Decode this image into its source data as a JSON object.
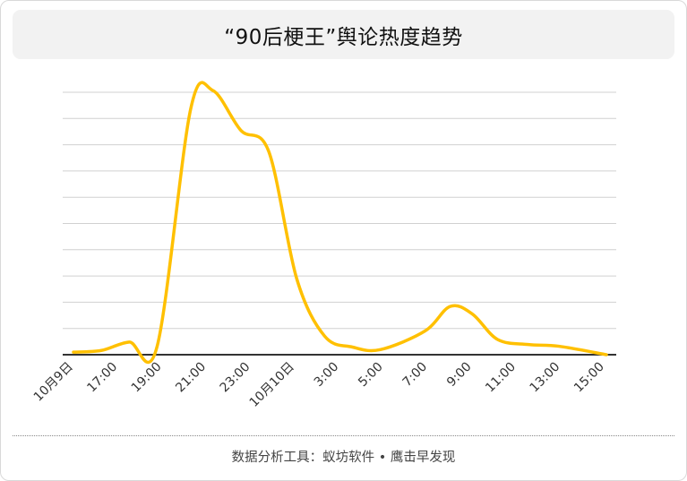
{
  "chart_data": {
    "type": "line",
    "title": "“90后梗王”舆论热度趋势",
    "xlabel": "",
    "ylabel": "",
    "x_tick_labels": [
      "10月9日",
      "17:00",
      "19:00",
      "21:00",
      "23:00",
      "10月10日",
      "3:00",
      "5:00",
      "7:00",
      "9:00",
      "11:00",
      "13:00",
      "15:00"
    ],
    "series": [
      {
        "color": "#FFC000",
        "values": [
          0.3,
          0.5,
          1.5,
          1.0,
          29.0,
          31.2,
          26.5,
          24.0,
          9.0,
          2.2,
          0.9,
          0.6,
          2.8,
          5.7,
          4.8,
          1.8,
          1.2,
          1.0,
          0.0
        ]
      }
    ],
    "x_positions": [
      0,
      1,
      2,
      3,
      4.2,
      5,
      6,
      7,
      8,
      9,
      10,
      11,
      12.6,
      13.5,
      14.3,
      15.2,
      16.3,
      17.4,
      19.1
    ],
    "y_range": [
      0,
      31
    ],
    "gridlines": 10,
    "y_tick_labels_visible": false,
    "grid": true
  },
  "footer": {
    "source": "数据分析工具：蚁坊软件 • 鹰击早发现"
  }
}
